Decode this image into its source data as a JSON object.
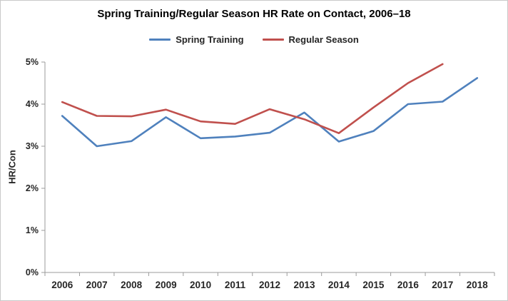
{
  "chart_data": {
    "type": "line",
    "title": "Spring Training/Regular Season HR Rate on Contact, 2006–18",
    "xlabel": "",
    "ylabel": "HR/Con",
    "categories": [
      "2006",
      "2007",
      "2008",
      "2009",
      "2010",
      "2011",
      "2012",
      "2013",
      "2014",
      "2015",
      "2016",
      "2017",
      "2018"
    ],
    "series": [
      {
        "name": "Spring Training",
        "color": "#4F81BD",
        "values": [
          3.72,
          3.0,
          3.12,
          3.69,
          3.19,
          3.23,
          3.32,
          3.8,
          3.11,
          3.36,
          4.0,
          4.06,
          4.62
        ]
      },
      {
        "name": "Regular Season",
        "color": "#C0504D",
        "values": [
          4.05,
          3.72,
          3.71,
          3.87,
          3.59,
          3.53,
          3.88,
          3.64,
          3.31,
          3.92,
          4.5,
          4.95,
          null
        ]
      }
    ],
    "ylim": [
      0,
      5
    ],
    "yticks": [
      0,
      1,
      2,
      3,
      4,
      5
    ],
    "ytick_suffix": "%",
    "grid": false,
    "legend_position": "top"
  }
}
